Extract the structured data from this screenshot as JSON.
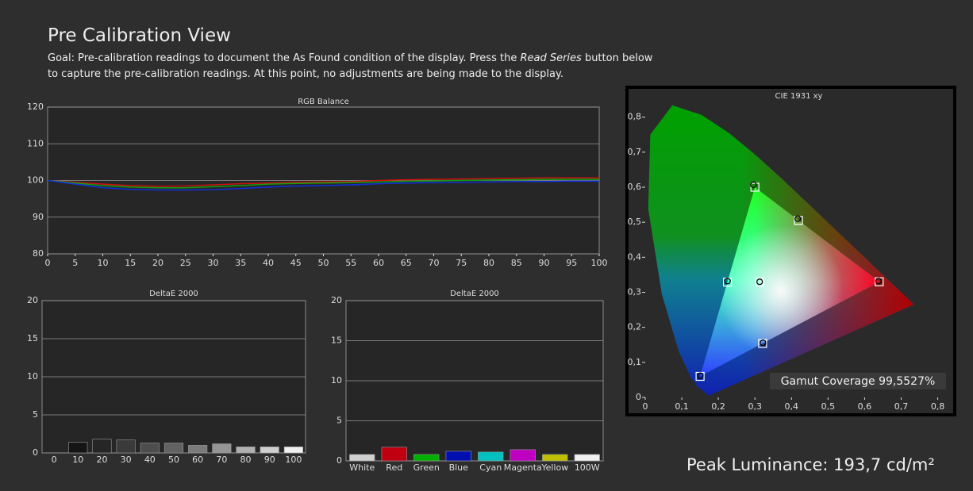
{
  "header": {
    "title": "Pre Calibration View",
    "goal": [
      "Goal: Pre-calibration readings to document the As Found condition of the display. Press the ",
      "Read Series",
      " button below to capture the pre-calibration readings. At this point, no adjustments are being made to the display."
    ]
  },
  "footer": {
    "peak_luminance": "Peak Luminance: 193,7 cd/m²"
  },
  "chart_data": [
    {
      "type": "line",
      "title": "RGB Balance",
      "x": [
        0,
        5,
        10,
        15,
        20,
        25,
        30,
        35,
        40,
        45,
        50,
        55,
        60,
        65,
        70,
        75,
        80,
        85,
        90,
        95,
        100
      ],
      "series": [
        {
          "color": "#d01010",
          "values": [
            100,
            99.5,
            99,
            98.6,
            98.4,
            98.5,
            98.8,
            99.1,
            99.3,
            99.5,
            99.6,
            99.7,
            100,
            100.2,
            100.3,
            100.4,
            100.5,
            100.6,
            100.7,
            100.7,
            100.7
          ]
        },
        {
          "color": "#10a010",
          "values": [
            100,
            99.3,
            98.6,
            98.2,
            98,
            98,
            98.3,
            98.6,
            99,
            99.2,
            99.3,
            99.4,
            99.6,
            99.8,
            99.9,
            100,
            100.1,
            100.2,
            100.3,
            100.3,
            100.3
          ]
        },
        {
          "color": "#1030e0",
          "values": [
            100,
            99,
            98,
            97.6,
            97.4,
            97.4,
            97.5,
            97.8,
            98.2,
            98.5,
            98.6,
            98.8,
            99.1,
            99.3,
            99.4,
            99.5,
            99.6,
            99.7,
            99.7,
            99.8,
            99.8
          ]
        }
      ],
      "xlim": [
        0,
        100
      ],
      "xticks": [
        0,
        5,
        10,
        15,
        20,
        25,
        30,
        35,
        40,
        45,
        50,
        55,
        60,
        65,
        70,
        75,
        80,
        85,
        90,
        95,
        100
      ],
      "ylim": [
        80,
        120
      ],
      "yticks": [
        80,
        90,
        100,
        110,
        120
      ],
      "grid": true
    },
    {
      "type": "bar",
      "title": "DeltaE 2000",
      "categories": [
        "0",
        "10",
        "20",
        "30",
        "40",
        "50",
        "60",
        "70",
        "80",
        "90",
        "100"
      ],
      "values": [
        0,
        1.4,
        1.8,
        1.7,
        1.3,
        1.3,
        1.0,
        1.2,
        0.8,
        0.8,
        0.8
      ],
      "colors": [
        "#000000",
        "#151515",
        "#262626",
        "#3a3a3a",
        "#4d4d4d",
        "#626262",
        "#7a7a7a",
        "#959595",
        "#b0b0b0",
        "#cfcfcf",
        "#f0f0f0"
      ],
      "ylim": [
        0,
        20
      ],
      "yticks": [
        0,
        5,
        10,
        15,
        20
      ],
      "grid": true
    },
    {
      "type": "bar",
      "title": "DeltaE 2000",
      "categories": [
        "White",
        "Red",
        "Green",
        "Blue",
        "Cyan",
        "Magenta",
        "Yellow",
        "100W"
      ],
      "values": [
        0.8,
        1.7,
        0.8,
        1.2,
        1.1,
        1.4,
        0.8,
        0.8
      ],
      "colors": [
        "#d0d0d0",
        "#c00010",
        "#00b000",
        "#0010b0",
        "#00c0c0",
        "#c000c0",
        "#c0c000",
        "#f0f0f0"
      ],
      "ylim": [
        0,
        20
      ],
      "yticks": [
        0,
        5,
        10,
        15,
        20
      ],
      "grid": true
    },
    {
      "type": "scatter",
      "title": "CIE 1931 xy",
      "series": [
        {
          "marker": "square",
          "x": [
            0.64,
            0.3,
            0.15,
            0.3127,
            0.225,
            0.321,
            0.419
          ],
          "y": [
            0.33,
            0.6,
            0.06,
            0.329,
            0.329,
            0.154,
            0.505
          ]
        },
        {
          "marker": "circle",
          "x": [
            0.638,
            0.296,
            0.151,
            0.313,
            0.225,
            0.322,
            0.417
          ],
          "y": [
            0.332,
            0.607,
            0.062,
            0.33,
            0.332,
            0.156,
            0.51
          ]
        }
      ],
      "xlim": [
        0,
        0.84
      ],
      "ylim": [
        0,
        0.84
      ],
      "xticks": [
        0,
        {
          "value": 0.1,
          "label": "0,1"
        },
        {
          "value": 0.2,
          "label": "0,2"
        },
        {
          "value": 0.3,
          "label": "0,3"
        },
        {
          "value": 0.4,
          "label": "0,4"
        },
        {
          "value": 0.5,
          "label": "0,5"
        },
        {
          "value": 0.6,
          "label": "0,6"
        },
        {
          "value": 0.7,
          "label": "0,7"
        },
        {
          "value": 0.8,
          "label": "0,8"
        }
      ],
      "yticks": [
        0,
        {
          "value": 0.1,
          "label": "0,1"
        },
        {
          "value": 0.2,
          "label": "0,2"
        },
        {
          "value": 0.3,
          "label": "0,3"
        },
        {
          "value": 0.4,
          "label": "0,4"
        },
        {
          "value": 0.5,
          "label": "0,5"
        },
        {
          "value": 0.6,
          "label": "0,6"
        },
        {
          "value": 0.7,
          "label": "0,7"
        },
        {
          "value": 0.8,
          "label": "0,8"
        }
      ],
      "grid": false,
      "annotation": "Gamut Coverage 99,5527%"
    }
  ]
}
